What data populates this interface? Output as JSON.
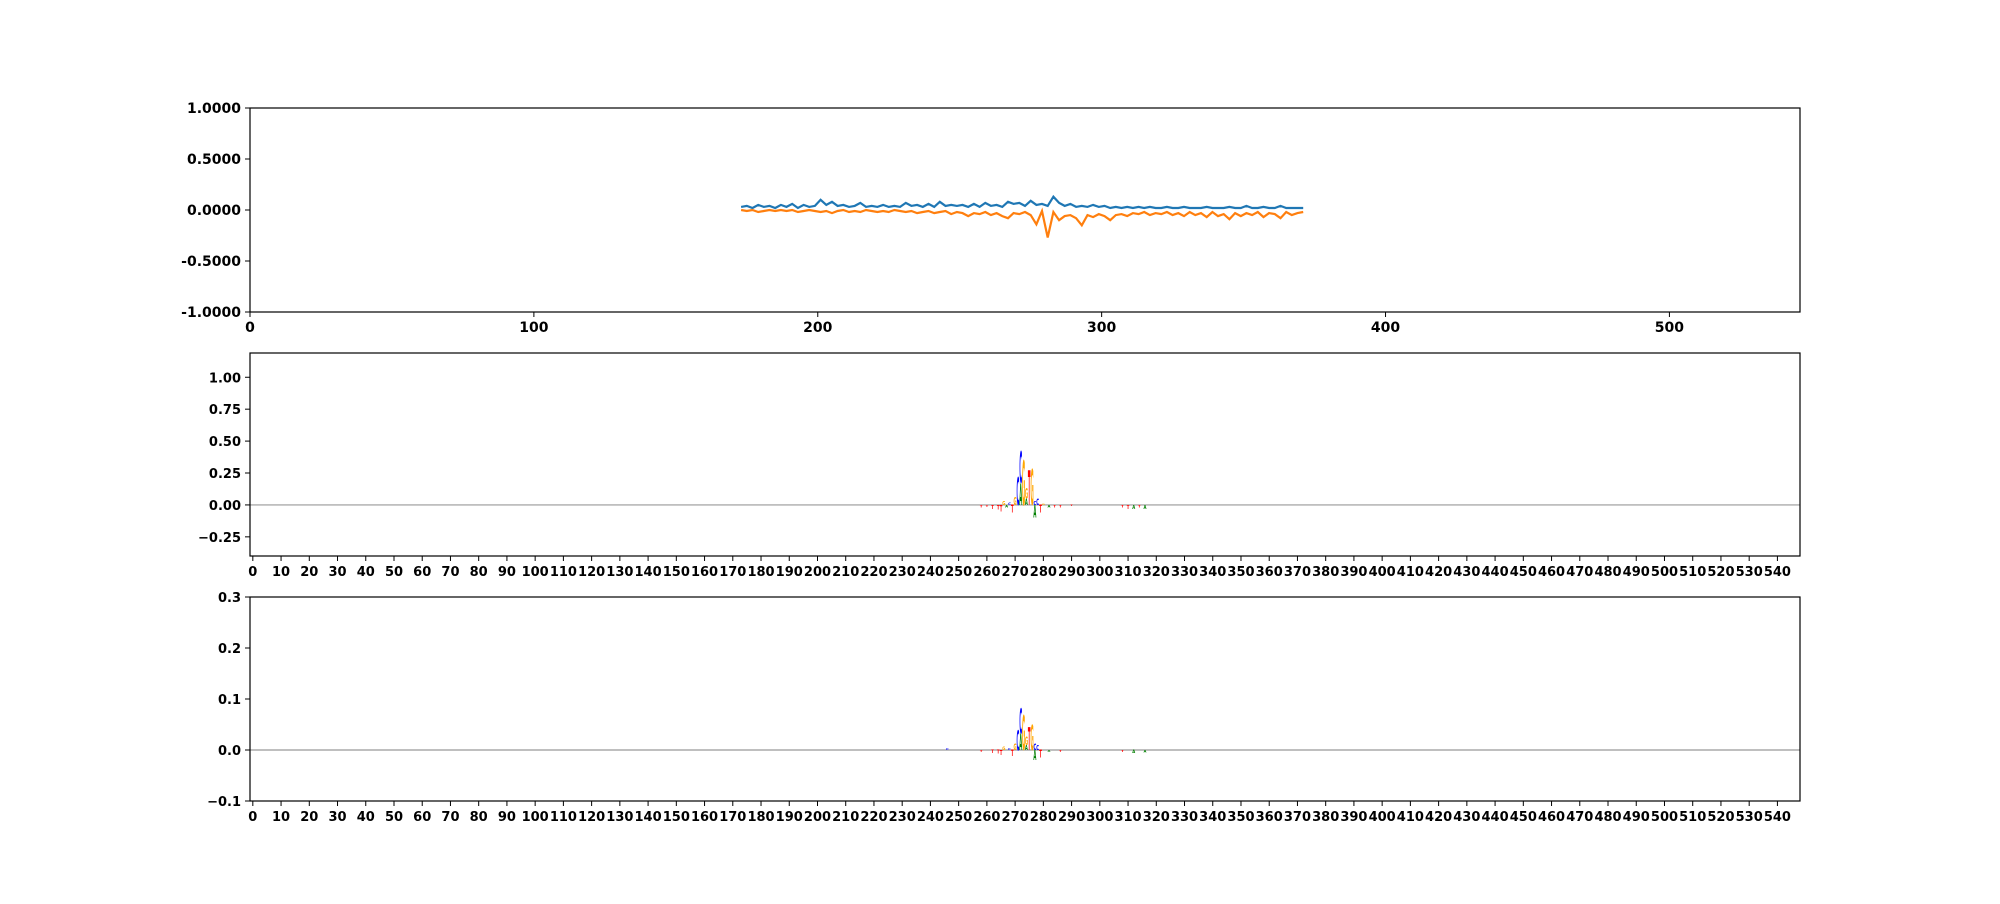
{
  "chart_data": [
    {
      "type": "line",
      "title": "",
      "xlim": [
        0,
        546
      ],
      "ylim": [
        -1,
        1
      ],
      "xticks": [
        0,
        100,
        200,
        300,
        400,
        500
      ],
      "yticks": [
        1.0,
        0.5,
        0.0,
        -0.5,
        -1.0
      ],
      "ytick_labels": [
        "1.0000",
        "0.5000",
        "0.0000",
        "-0.5000",
        "-1.0000"
      ],
      "x_start": 173,
      "x_step": 2,
      "series": [
        {
          "name": "series-1",
          "color": "#1f77b4",
          "values": [
            0.03,
            0.04,
            0.02,
            0.05,
            0.03,
            0.04,
            0.02,
            0.05,
            0.03,
            0.06,
            0.02,
            0.05,
            0.03,
            0.04,
            0.1,
            0.05,
            0.08,
            0.04,
            0.05,
            0.03,
            0.04,
            0.07,
            0.03,
            0.04,
            0.03,
            0.05,
            0.03,
            0.04,
            0.03,
            0.07,
            0.04,
            0.05,
            0.03,
            0.06,
            0.03,
            0.08,
            0.04,
            0.05,
            0.04,
            0.05,
            0.03,
            0.06,
            0.03,
            0.07,
            0.04,
            0.05,
            0.03,
            0.08,
            0.06,
            0.07,
            0.04,
            0.09,
            0.05,
            0.06,
            0.04,
            0.13,
            0.07,
            0.04,
            0.06,
            0.03,
            0.04,
            0.03,
            0.05,
            0.03,
            0.04,
            0.02,
            0.03,
            0.02,
            0.03,
            0.02,
            0.03,
            0.02,
            0.03,
            0.02,
            0.02,
            0.03,
            0.02,
            0.02,
            0.03,
            0.02,
            0.02,
            0.02,
            0.03,
            0.02,
            0.02,
            0.02,
            0.03,
            0.02,
            0.02,
            0.04,
            0.02,
            0.02,
            0.03,
            0.02,
            0.02,
            0.04,
            0.02,
            0.02,
            0.02,
            0.02
          ]
        },
        {
          "name": "series-2",
          "color": "#ff7f0e",
          "values": [
            0.0,
            -0.01,
            0.0,
            -0.02,
            -0.01,
            0.0,
            -0.01,
            0.0,
            -0.01,
            0.0,
            -0.02,
            -0.01,
            0.0,
            -0.01,
            -0.02,
            -0.01,
            -0.03,
            -0.01,
            0.0,
            -0.02,
            -0.01,
            -0.02,
            0.0,
            -0.01,
            -0.02,
            -0.01,
            -0.02,
            0.0,
            -0.01,
            -0.02,
            -0.01,
            -0.03,
            -0.02,
            -0.01,
            -0.03,
            -0.02,
            -0.01,
            -0.04,
            -0.02,
            -0.03,
            -0.06,
            -0.03,
            -0.04,
            -0.02,
            -0.05,
            -0.03,
            -0.06,
            -0.08,
            -0.03,
            -0.04,
            -0.02,
            -0.05,
            -0.14,
            -0.01,
            -0.27,
            -0.02,
            -0.1,
            -0.06,
            -0.05,
            -0.08,
            -0.15,
            -0.05,
            -0.07,
            -0.04,
            -0.06,
            -0.1,
            -0.05,
            -0.04,
            -0.06,
            -0.03,
            -0.04,
            -0.02,
            -0.05,
            -0.03,
            -0.04,
            -0.02,
            -0.05,
            -0.03,
            -0.06,
            -0.02,
            -0.05,
            -0.03,
            -0.07,
            -0.02,
            -0.06,
            -0.04,
            -0.09,
            -0.03,
            -0.06,
            -0.03,
            -0.05,
            -0.02,
            -0.07,
            -0.03,
            -0.04,
            -0.08,
            -0.02,
            -0.05,
            -0.03,
            -0.02
          ]
        }
      ]
    },
    {
      "type": "logo",
      "xlim": [
        -1,
        548
      ],
      "ylim": [
        -0.4,
        1.19
      ],
      "yticks": [
        -0.25,
        0.0,
        0.25,
        0.5,
        0.75,
        1.0
      ],
      "ytick_labels": [
        "−0.25",
        "0.00",
        "0.25",
        "0.50",
        "0.75",
        "1.00"
      ],
      "xticks": [
        0,
        10,
        20,
        30,
        40,
        50,
        60,
        70,
        80,
        90,
        100,
        110,
        120,
        130,
        140,
        150,
        160,
        170,
        180,
        190,
        200,
        210,
        220,
        230,
        240,
        250,
        260,
        270,
        280,
        290,
        300,
        310,
        320,
        330,
        340,
        350,
        360,
        370,
        380,
        390,
        400,
        410,
        420,
        430,
        440,
        450,
        460,
        470,
        480,
        490,
        500,
        510,
        520,
        530,
        540
      ],
      "colors": {
        "A": "#008000",
        "C": "#0000ff",
        "G": "#ffa500",
        "T": "#ff0000"
      },
      "letters": [
        [
          258,
          "T",
          -0.02
        ],
        [
          260,
          "T",
          -0.015
        ],
        [
          262,
          "T",
          -0.03
        ],
        [
          264,
          "T",
          -0.035
        ],
        [
          265,
          "T",
          -0.05
        ],
        [
          266,
          "G",
          0.03
        ],
        [
          267,
          "A",
          -0.02
        ],
        [
          268,
          "C",
          0.02
        ],
        [
          269,
          "T",
          -0.06
        ],
        [
          270,
          "G",
          0.06
        ],
        [
          271,
          "C",
          0.22
        ],
        [
          272,
          "A",
          0.17
        ],
        [
          272,
          "C",
          0.25
        ],
        [
          273,
          "G",
          0.35
        ],
        [
          274,
          "A",
          0.05
        ],
        [
          274,
          "G",
          0.08
        ],
        [
          275,
          "T",
          0.27
        ],
        [
          276,
          "G",
          0.28
        ],
        [
          277,
          "A",
          -0.1
        ],
        [
          277,
          "C",
          0.03
        ],
        [
          278,
          "C",
          0.05
        ],
        [
          279,
          "T",
          -0.06
        ],
        [
          280,
          "G",
          0.01
        ],
        [
          282,
          "A",
          -0.02
        ],
        [
          284,
          "T",
          -0.02
        ],
        [
          286,
          "T",
          -0.02
        ],
        [
          290,
          "T",
          -0.01
        ],
        [
          308,
          "T",
          -0.02
        ],
        [
          310,
          "T",
          -0.03
        ],
        [
          312,
          "A",
          -0.03
        ],
        [
          314,
          "T",
          -0.02
        ],
        [
          316,
          "A",
          -0.03
        ]
      ]
    },
    {
      "type": "logo",
      "xlim": [
        -1,
        548
      ],
      "ylim": [
        -0.1,
        0.3
      ],
      "yticks": [
        -0.1,
        0.0,
        0.1,
        0.2,
        0.3
      ],
      "ytick_labels": [
        "−0.1",
        "0.0",
        "0.1",
        "0.2",
        "0.3"
      ],
      "xticks": [
        0,
        10,
        20,
        30,
        40,
        50,
        60,
        70,
        80,
        90,
        100,
        110,
        120,
        130,
        140,
        150,
        160,
        170,
        180,
        190,
        200,
        210,
        220,
        230,
        240,
        250,
        260,
        270,
        280,
        290,
        300,
        310,
        320,
        330,
        340,
        350,
        360,
        370,
        380,
        390,
        400,
        410,
        420,
        430,
        440,
        450,
        460,
        470,
        480,
        490,
        500,
        510,
        520,
        530,
        540
      ],
      "colors": {
        "A": "#008000",
        "C": "#0000ff",
        "G": "#ffa500",
        "T": "#ff0000"
      },
      "letters": [
        [
          246,
          "C",
          0.004
        ],
        [
          258,
          "T",
          -0.004
        ],
        [
          262,
          "T",
          -0.006
        ],
        [
          264,
          "T",
          -0.007
        ],
        [
          265,
          "T",
          -0.01
        ],
        [
          266,
          "G",
          0.006
        ],
        [
          268,
          "C",
          0.004
        ],
        [
          269,
          "T",
          -0.012
        ],
        [
          270,
          "G",
          0.012
        ],
        [
          271,
          "C",
          0.04
        ],
        [
          272,
          "A",
          0.032
        ],
        [
          272,
          "C",
          0.05
        ],
        [
          273,
          "G",
          0.068
        ],
        [
          274,
          "A",
          0.01
        ],
        [
          274,
          "G",
          0.016
        ],
        [
          275,
          "T",
          0.045
        ],
        [
          276,
          "G",
          0.05
        ],
        [
          277,
          "A",
          -0.02
        ],
        [
          277,
          "C",
          0.012
        ],
        [
          278,
          "C",
          0.01
        ],
        [
          279,
          "T",
          -0.015
        ],
        [
          282,
          "A",
          -0.004
        ],
        [
          286,
          "T",
          -0.004
        ],
        [
          308,
          "T",
          -0.004
        ],
        [
          312,
          "A",
          -0.006
        ],
        [
          316,
          "A",
          -0.005
        ]
      ]
    }
  ]
}
